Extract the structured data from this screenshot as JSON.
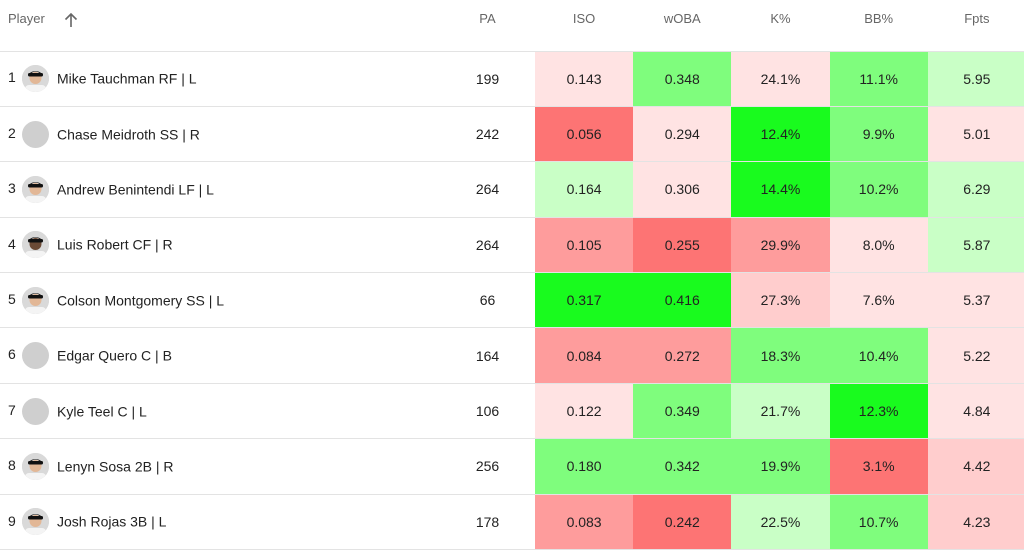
{
  "headers": {
    "player": "Player",
    "pa": "PA",
    "iso": "ISO",
    "woba": "wOBA",
    "k": "K%",
    "bb": "BB%",
    "fpts": "Fpts"
  },
  "colors": {
    "strong_green": "#19fb1e",
    "green": "#7ffd7d",
    "light_green": "#c9ffc6",
    "pale_red": "#ffe3e3",
    "light_red": "#ffcdcd",
    "red": "#fe9c9c",
    "strong_red": "#fd7474"
  },
  "rows": [
    {
      "rank": "1",
      "name": "Mike Tauchman RF | L",
      "avatar": "photo",
      "pa": "199",
      "iso": {
        "v": "0.143",
        "c": "#ffe3e3"
      },
      "woba": {
        "v": "0.348",
        "c": "#7ffd7d"
      },
      "k": {
        "v": "24.1%",
        "c": "#ffe3e3"
      },
      "bb": {
        "v": "11.1%",
        "c": "#7ffd7d"
      },
      "fpts": {
        "v": "5.95",
        "c": "#c9ffc6"
      }
    },
    {
      "rank": "2",
      "name": "Chase Meidroth SS | R",
      "avatar": "blank",
      "pa": "242",
      "iso": {
        "v": "0.056",
        "c": "#fd7474"
      },
      "woba": {
        "v": "0.294",
        "c": "#ffe3e3"
      },
      "k": {
        "v": "12.4%",
        "c": "#19fb1e"
      },
      "bb": {
        "v": "9.9%",
        "c": "#7ffd7d"
      },
      "fpts": {
        "v": "5.01",
        "c": "#ffe3e3"
      }
    },
    {
      "rank": "3",
      "name": "Andrew Benintendi LF | L",
      "avatar": "photo",
      "pa": "264",
      "iso": {
        "v": "0.164",
        "c": "#c9ffc6"
      },
      "woba": {
        "v": "0.306",
        "c": "#ffe3e3"
      },
      "k": {
        "v": "14.4%",
        "c": "#19fb1e"
      },
      "bb": {
        "v": "10.2%",
        "c": "#7ffd7d"
      },
      "fpts": {
        "v": "6.29",
        "c": "#c9ffc6"
      }
    },
    {
      "rank": "4",
      "name": "Luis Robert CF | R",
      "avatar": "photo-dark",
      "pa": "264",
      "iso": {
        "v": "0.105",
        "c": "#fe9c9c"
      },
      "woba": {
        "v": "0.255",
        "c": "#fd7474"
      },
      "k": {
        "v": "29.9%",
        "c": "#fe9c9c"
      },
      "bb": {
        "v": "8.0%",
        "c": "#ffe3e3"
      },
      "fpts": {
        "v": "5.87",
        "c": "#c9ffc6"
      }
    },
    {
      "rank": "5",
      "name": "Colson Montgomery SS | L",
      "avatar": "photo",
      "pa": "66",
      "iso": {
        "v": "0.317",
        "c": "#19fb1e"
      },
      "woba": {
        "v": "0.416",
        "c": "#19fb1e"
      },
      "k": {
        "v": "27.3%",
        "c": "#ffcdcd"
      },
      "bb": {
        "v": "7.6%",
        "c": "#ffe3e3"
      },
      "fpts": {
        "v": "5.37",
        "c": "#ffe3e3"
      }
    },
    {
      "rank": "6",
      "name": "Edgar Quero C | B",
      "avatar": "blank",
      "pa": "164",
      "iso": {
        "v": "0.084",
        "c": "#fe9c9c"
      },
      "woba": {
        "v": "0.272",
        "c": "#fe9c9c"
      },
      "k": {
        "v": "18.3%",
        "c": "#7ffd7d"
      },
      "bb": {
        "v": "10.4%",
        "c": "#7ffd7d"
      },
      "fpts": {
        "v": "5.22",
        "c": "#ffe3e3"
      }
    },
    {
      "rank": "7",
      "name": "Kyle Teel C | L",
      "avatar": "blank",
      "pa": "106",
      "iso": {
        "v": "0.122",
        "c": "#ffe3e3"
      },
      "woba": {
        "v": "0.349",
        "c": "#7ffd7d"
      },
      "k": {
        "v": "21.7%",
        "c": "#c9ffc6"
      },
      "bb": {
        "v": "12.3%",
        "c": "#19fb1e"
      },
      "fpts": {
        "v": "4.84",
        "c": "#ffe3e3"
      }
    },
    {
      "rank": "8",
      "name": "Lenyn Sosa 2B | R",
      "avatar": "photo",
      "pa": "256",
      "iso": {
        "v": "0.180",
        "c": "#7ffd7d"
      },
      "woba": {
        "v": "0.342",
        "c": "#7ffd7d"
      },
      "k": {
        "v": "19.9%",
        "c": "#7ffd7d"
      },
      "bb": {
        "v": "3.1%",
        "c": "#fd7474"
      },
      "fpts": {
        "v": "4.42",
        "c": "#ffcdcd"
      }
    },
    {
      "rank": "9",
      "name": "Josh Rojas 3B | L",
      "avatar": "photo",
      "pa": "178",
      "iso": {
        "v": "0.083",
        "c": "#fe9c9c"
      },
      "woba": {
        "v": "0.242",
        "c": "#fd7474"
      },
      "k": {
        "v": "22.5%",
        "c": "#c9ffc6"
      },
      "bb": {
        "v": "10.7%",
        "c": "#7ffd7d"
      },
      "fpts": {
        "v": "4.23",
        "c": "#ffcdcd"
      }
    }
  ]
}
